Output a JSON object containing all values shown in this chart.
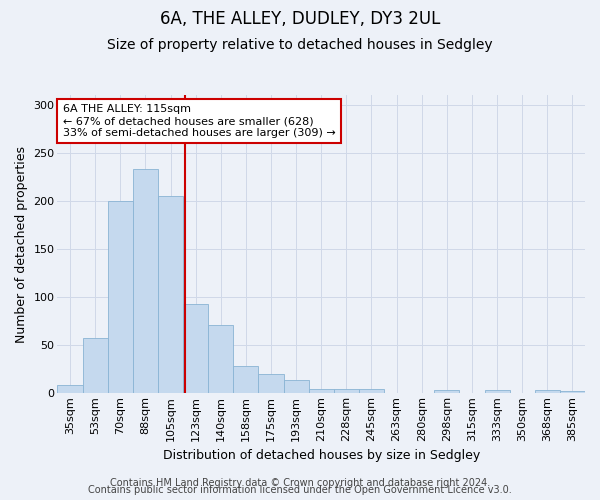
{
  "title": "6A, THE ALLEY, DUDLEY, DY3 2UL",
  "subtitle": "Size of property relative to detached houses in Sedgley",
  "xlabel": "Distribution of detached houses by size in Sedgley",
  "ylabel": "Number of detached properties",
  "categories": [
    "35sqm",
    "53sqm",
    "70sqm",
    "88sqm",
    "105sqm",
    "123sqm",
    "140sqm",
    "158sqm",
    "175sqm",
    "193sqm",
    "210sqm",
    "228sqm",
    "245sqm",
    "263sqm",
    "280sqm",
    "298sqm",
    "315sqm",
    "333sqm",
    "350sqm",
    "368sqm",
    "385sqm"
  ],
  "values": [
    9,
    58,
    200,
    234,
    205,
    93,
    71,
    28,
    20,
    14,
    4,
    4,
    4,
    0,
    0,
    3,
    0,
    3,
    0,
    3,
    2
  ],
  "bar_color": "#c5d9ee",
  "bar_edge_color": "#8ab4d4",
  "grid_color": "#d0d8e8",
  "background_color": "#edf1f8",
  "annotation_text": "6A THE ALLEY: 115sqm\n← 67% of detached houses are smaller (628)\n33% of semi-detached houses are larger (309) →",
  "annotation_box_color": "#ffffff",
  "annotation_box_edge": "#cc0000",
  "vline_color": "#cc0000",
  "vline_x": 4.56,
  "ylim": [
    0,
    310
  ],
  "yticks": [
    0,
    50,
    100,
    150,
    200,
    250,
    300
  ],
  "footer1": "Contains HM Land Registry data © Crown copyright and database right 2024.",
  "footer2": "Contains public sector information licensed under the Open Government Licence v3.0.",
  "title_fontsize": 12,
  "subtitle_fontsize": 10,
  "ylabel_fontsize": 9,
  "xlabel_fontsize": 9,
  "tick_fontsize": 8,
  "footer_fontsize": 7,
  "annot_fontsize": 8
}
